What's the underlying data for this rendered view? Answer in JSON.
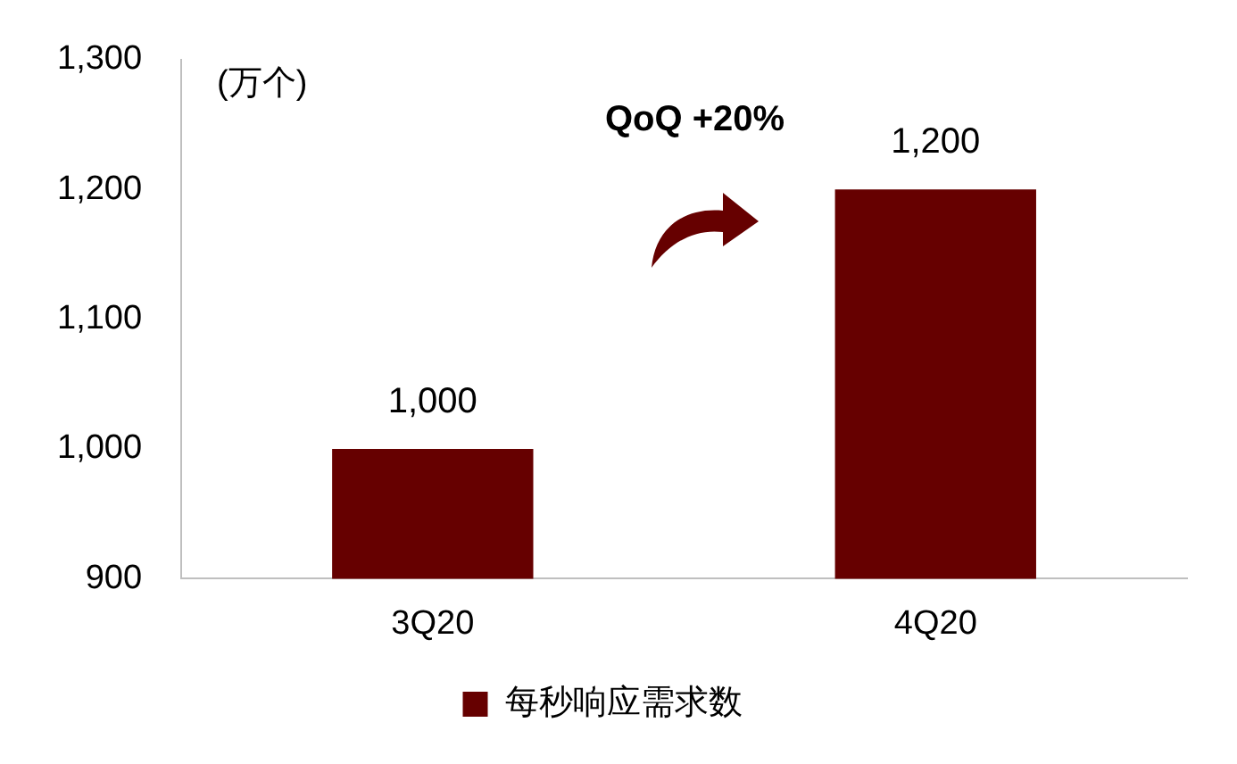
{
  "chart_data": {
    "type": "bar",
    "ylabel": "(万个)",
    "categories": [
      "3Q20",
      "4Q20"
    ],
    "series": [
      {
        "name": "每秒响应需求数",
        "color": "#660000",
        "values": [
          1000,
          1200
        ],
        "value_labels": [
          "1,000",
          "1,200"
        ]
      }
    ],
    "ylim": [
      900,
      1300
    ],
    "yticks": [
      {
        "value": 900,
        "label": "900"
      },
      {
        "value": 1000,
        "label": "1,000"
      },
      {
        "value": 1100,
        "label": "1,100"
      },
      {
        "value": 1200,
        "label": "1,200"
      },
      {
        "value": 1300,
        "label": "1,300"
      }
    ],
    "grid": false,
    "legend": "bottom",
    "annotations": [
      "QoQ +20%"
    ]
  }
}
